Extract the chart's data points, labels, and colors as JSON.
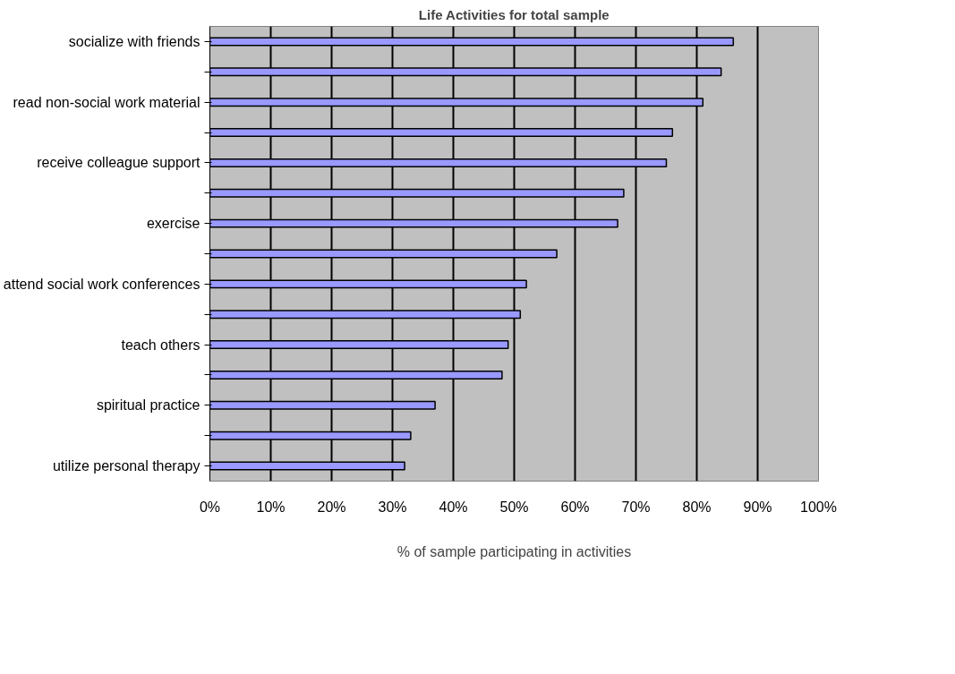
{
  "chart_data": {
    "type": "bar",
    "orientation": "horizontal",
    "title": "Life Activities for total sample",
    "xlabel": "% of sample participating in activities",
    "categories": [
      "socialize with friends",
      null,
      "read non-social work material",
      null,
      "receive colleague support",
      null,
      "exercise",
      null,
      "attend social work conferences",
      null,
      "teach others",
      null,
      "spiritual practice",
      null,
      "utilize personal therapy"
    ],
    "values": [
      86,
      84,
      81,
      76,
      75,
      68,
      67,
      57,
      52,
      51,
      49,
      48,
      37,
      33,
      32
    ],
    "color": "#9999ff",
    "xlim": [
      0,
      100
    ],
    "xticks": [
      {
        "value": 0,
        "label": "0%"
      },
      {
        "value": 10,
        "label": "10%"
      },
      {
        "value": 20,
        "label": "20%"
      },
      {
        "value": 30,
        "label": "30%"
      },
      {
        "value": 40,
        "label": "40%"
      },
      {
        "value": 50,
        "label": "50%"
      },
      {
        "value": 60,
        "label": "60%"
      },
      {
        "value": 70,
        "label": "70%"
      },
      {
        "value": 80,
        "label": "80%"
      },
      {
        "value": 90,
        "label": "90%"
      },
      {
        "value": 100,
        "label": "100%"
      }
    ],
    "grid": "x"
  }
}
